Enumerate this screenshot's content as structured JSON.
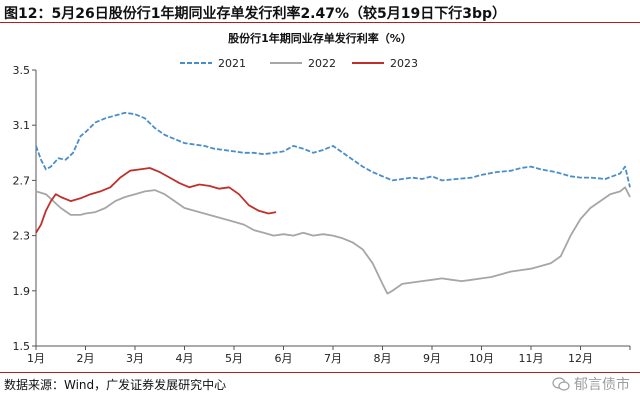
{
  "figure": {
    "title": "图12：5月26日股份行1年期同业存单发行利率2.47%（较5月19日下行3bp）",
    "source": "数据来源：Wind，广发证券发展研究中心",
    "watermark": "郁言债市",
    "watermark_icon": "wechat-icon"
  },
  "chart_data": {
    "type": "line",
    "title": "股份行1年期同业存单发行利率（%）",
    "xlabel": "",
    "ylabel": "",
    "x_tick_labels": [
      "1月",
      "2月",
      "3月",
      "4月",
      "5月",
      "6月",
      "7月",
      "8月",
      "9月",
      "10月",
      "11月",
      "12月"
    ],
    "x_unit": "month (1.0 = start of January, 13.0 = end of December)",
    "xlim": [
      1.0,
      13.0
    ],
    "ylim": [
      1.5,
      3.5
    ],
    "y_ticks": [
      1.5,
      1.9,
      2.3,
      2.7,
      3.1,
      3.5
    ],
    "grid": false,
    "legend_position": "top-right",
    "series": [
      {
        "name": "2021",
        "color": "#4a8ec9",
        "style": "dashed",
        "x": [
          1.0,
          1.1,
          1.2,
          1.3,
          1.45,
          1.6,
          1.75,
          1.9,
          2.0,
          2.2,
          2.4,
          2.6,
          2.8,
          3.0,
          3.2,
          3.4,
          3.6,
          3.8,
          4.0,
          4.2,
          4.4,
          4.6,
          4.8,
          5.0,
          5.2,
          5.4,
          5.6,
          5.8,
          6.0,
          6.2,
          6.4,
          6.6,
          6.8,
          7.0,
          7.2,
          7.4,
          7.6,
          7.8,
          8.0,
          8.2,
          8.4,
          8.6,
          8.8,
          9.0,
          9.2,
          9.5,
          9.8,
          10.0,
          10.3,
          10.6,
          10.8,
          11.0,
          11.2,
          11.5,
          11.8,
          12.0,
          12.2,
          12.5,
          12.8,
          12.9,
          13.0
        ],
        "y": [
          2.95,
          2.85,
          2.78,
          2.8,
          2.86,
          2.85,
          2.9,
          3.02,
          3.05,
          3.12,
          3.15,
          3.17,
          3.19,
          3.18,
          3.15,
          3.08,
          3.03,
          3.0,
          2.97,
          2.96,
          2.95,
          2.93,
          2.92,
          2.91,
          2.9,
          2.9,
          2.89,
          2.9,
          2.91,
          2.95,
          2.93,
          2.9,
          2.92,
          2.95,
          2.9,
          2.85,
          2.8,
          2.76,
          2.73,
          2.7,
          2.71,
          2.72,
          2.71,
          2.73,
          2.7,
          2.71,
          2.72,
          2.74,
          2.76,
          2.77,
          2.79,
          2.8,
          2.78,
          2.76,
          2.73,
          2.72,
          2.72,
          2.71,
          2.75,
          2.8,
          2.65
        ]
      },
      {
        "name": "2022",
        "color": "#a6a6a6",
        "style": "solid",
        "x": [
          1.0,
          1.2,
          1.35,
          1.5,
          1.7,
          1.9,
          2.0,
          2.2,
          2.4,
          2.6,
          2.8,
          3.0,
          3.2,
          3.4,
          3.6,
          3.8,
          4.0,
          4.2,
          4.4,
          4.6,
          4.8,
          5.0,
          5.2,
          5.4,
          5.6,
          5.8,
          6.0,
          6.2,
          6.4,
          6.6,
          6.8,
          7.0,
          7.2,
          7.4,
          7.6,
          7.8,
          8.0,
          8.1,
          8.2,
          8.4,
          8.6,
          8.8,
          9.0,
          9.2,
          9.4,
          9.6,
          9.8,
          10.0,
          10.2,
          10.4,
          10.6,
          10.8,
          11.0,
          11.2,
          11.4,
          11.6,
          11.8,
          12.0,
          12.2,
          12.4,
          12.6,
          12.8,
          12.9,
          13.0
        ],
        "y": [
          2.62,
          2.6,
          2.55,
          2.5,
          2.45,
          2.45,
          2.46,
          2.47,
          2.5,
          2.55,
          2.58,
          2.6,
          2.62,
          2.63,
          2.6,
          2.55,
          2.5,
          2.48,
          2.46,
          2.44,
          2.42,
          2.4,
          2.38,
          2.34,
          2.32,
          2.3,
          2.31,
          2.3,
          2.32,
          2.3,
          2.31,
          2.3,
          2.28,
          2.25,
          2.2,
          2.1,
          1.95,
          1.88,
          1.9,
          1.95,
          1.96,
          1.97,
          1.98,
          1.99,
          1.98,
          1.97,
          1.98,
          1.99,
          2.0,
          2.02,
          2.04,
          2.05,
          2.06,
          2.08,
          2.1,
          2.15,
          2.3,
          2.42,
          2.5,
          2.55,
          2.6,
          2.62,
          2.65,
          2.58
        ]
      },
      {
        "name": "2023",
        "color": "#c0302b",
        "style": "solid",
        "x": [
          1.0,
          1.1,
          1.2,
          1.3,
          1.4,
          1.5,
          1.7,
          1.9,
          2.1,
          2.3,
          2.5,
          2.7,
          2.9,
          3.1,
          3.3,
          3.5,
          3.7,
          3.9,
          4.1,
          4.3,
          4.5,
          4.7,
          4.9,
          5.1,
          5.3,
          5.5,
          5.7,
          5.85
        ],
        "y": [
          2.32,
          2.38,
          2.48,
          2.55,
          2.6,
          2.58,
          2.55,
          2.57,
          2.6,
          2.62,
          2.65,
          2.72,
          2.77,
          2.78,
          2.79,
          2.76,
          2.72,
          2.68,
          2.65,
          2.67,
          2.66,
          2.64,
          2.65,
          2.6,
          2.52,
          2.48,
          2.46,
          2.47
        ]
      }
    ]
  }
}
